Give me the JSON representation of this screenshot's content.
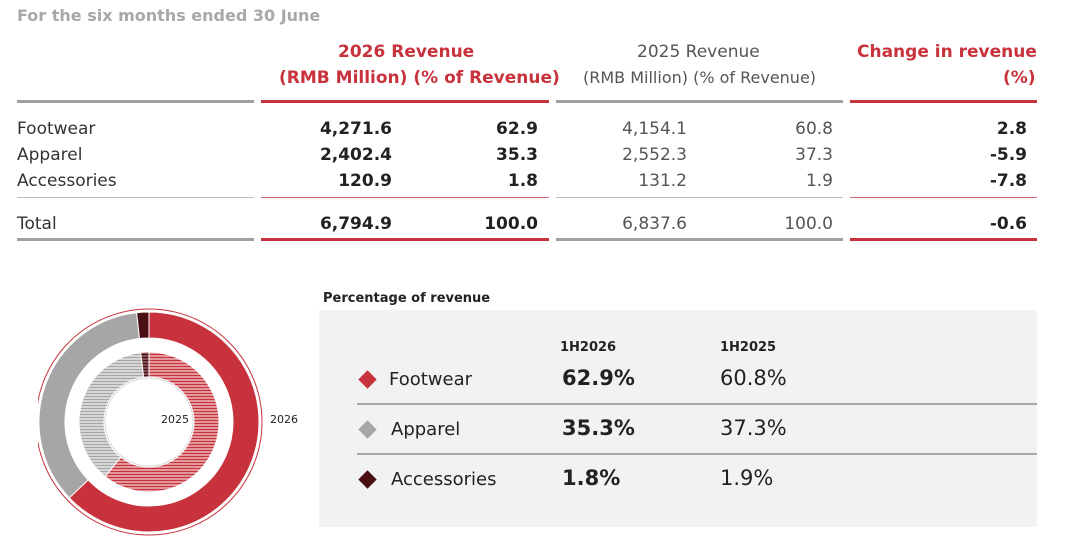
{
  "period": "For the six months ended 30 June",
  "table": {
    "headers": {
      "rev2026_title": "2026 Revenue",
      "rev2026_sub": "(RMB Million)  (% of Revenue)",
      "rev2025_title": "2025 Revenue",
      "rev2025_sub": "(RMB Million)    (% of Revenue)",
      "change_title": "Change in revenue",
      "change_sub": "(%)"
    },
    "rows": [
      {
        "label": "Footwear",
        "rev2026": "4,271.6",
        "pct2026": "62.9",
        "rev2025": "4,154.1",
        "pct2025": "60.8",
        "change": "2.8"
      },
      {
        "label": "Apparel",
        "rev2026": "2,402.4",
        "pct2026": "35.3",
        "rev2025": "2,552.3",
        "pct2025": "37.3",
        "change": "-5.9"
      },
      {
        "label": "Accessories",
        "rev2026": "120.9",
        "pct2026": "1.8",
        "rev2025": "131.2",
        "pct2025": "1.9",
        "change": "-7.8"
      }
    ],
    "total": {
      "label": "Total",
      "rev2026": "6,794.9",
      "pct2026": "100.0",
      "rev2025": "6,837.6",
      "pct2025": "100.0",
      "change": "-0.6"
    }
  },
  "pct_panel": {
    "title": "Percentage of revenue",
    "col1": "1H2026",
    "col2": "1H2025",
    "items": [
      {
        "label": "Footwear",
        "v2026": "62.9%",
        "v2025": "60.8%",
        "color": "#c8323c"
      },
      {
        "label": "Apparel",
        "v2026": "35.3%",
        "v2025": "37.3%",
        "color": "#a6a6a6"
      },
      {
        "label": "Accessories",
        "v2026": "1.8%",
        "v2025": "1.9%",
        "color": "#4a0f12"
      }
    ]
  },
  "chart_data": {
    "type": "pie",
    "rings": [
      {
        "name": "2026",
        "values": [
          62.9,
          35.3,
          1.8
        ]
      },
      {
        "name": "2025",
        "values": [
          60.8,
          37.3,
          1.9
        ]
      }
    ],
    "categories": [
      "Footwear",
      "Apparel",
      "Accessories"
    ],
    "colors": [
      "#c8323c",
      "#a6a6a6",
      "#4a0f12"
    ]
  }
}
